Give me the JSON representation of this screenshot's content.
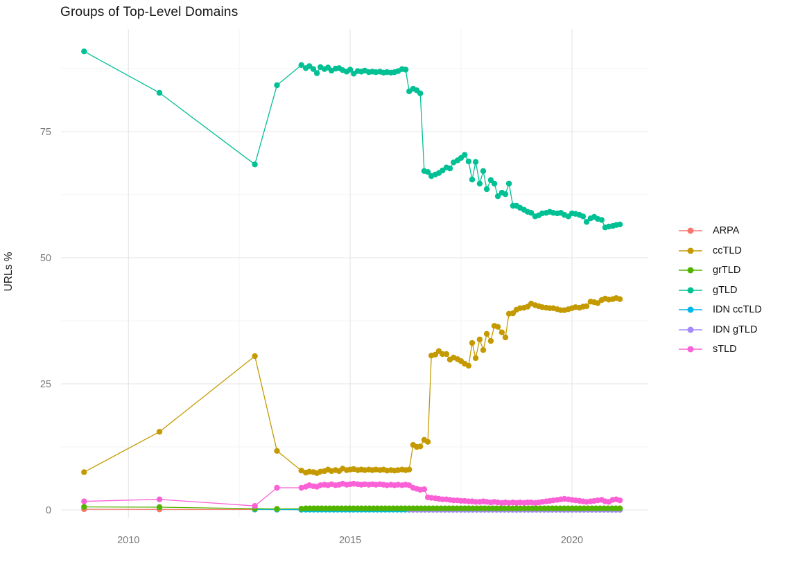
{
  "title": "Groups of Top-Level Domains",
  "y_axis_title": "URLs %",
  "chart_data": {
    "type": "line",
    "title": "Groups of Top-Level Domains",
    "xlabel": "",
    "ylabel": "URLs %",
    "grid": "major+minor",
    "legend_position": "right",
    "xlim": [
      2008.48,
      2021.72
    ],
    "ylim": [
      -1.65,
      95.33
    ],
    "x_ticks": [
      2010,
      2015,
      2020
    ],
    "x_tick_labels": [
      "2010",
      "2015",
      "2020"
    ],
    "x_minor": [
      2012.5,
      2017.5
    ],
    "y_ticks": [
      0,
      25,
      50,
      75
    ],
    "y_tick_labels": [
      "0",
      "25",
      "50",
      "75"
    ],
    "y_minor": [
      12.5,
      37.5,
      62.5,
      87.5
    ],
    "legend_order": [
      "ARPA",
      "ccTLD",
      "grTLD",
      "gTLD",
      "IDN ccTLD",
      "IDN gTLD",
      "sTLD"
    ],
    "series": [
      {
        "name": "ARPA",
        "color": "#F8766D",
        "points": [
          [
            2009,
            0.15
          ],
          [
            2010.7,
            0.1
          ],
          [
            2012.85,
            0.08
          ],
          [
            2013.35,
            0.08
          ],
          [
            2013.9,
            0.05
          ]
        ]
      },
      {
        "name": "IDN ccTLD",
        "color": "#00B6EB",
        "points": [
          [
            2012.85,
            0.1
          ],
          [
            2013.35,
            0.07
          ],
          [
            2013.9,
            0.06
          ]
        ],
        "dense": {
          "x0": 2014,
          "x1": 2021.08,
          "n": 80,
          "y_const": 0.06
        }
      },
      {
        "name": "IDN gTLD",
        "color": "#A58AFF",
        "points": [],
        "dense": {
          "x0": 2016.33,
          "x1": 2021.08,
          "n": 54,
          "y_const": 0.03
        }
      },
      {
        "name": "grTLD",
        "color": "#53B400",
        "points": [
          [
            2009,
            0.6
          ],
          [
            2010.7,
            0.55
          ],
          [
            2012.85,
            0.25
          ],
          [
            2013.35,
            0.2
          ],
          [
            2013.9,
            0.25
          ]
        ],
        "dense": {
          "x0": 2014,
          "x1": 2021.08,
          "n": 80,
          "y_const": 0.32
        }
      },
      {
        "name": "ccTLD",
        "color": "#C49A00",
        "points": [
          [
            2009,
            7.5
          ],
          [
            2010.7,
            15.5
          ],
          [
            2012.85,
            30.5
          ],
          [
            2013.35,
            11.7
          ],
          [
            2013.9,
            7.8
          ],
          [
            2014,
            7.4
          ],
          [
            2014.08,
            7.6
          ],
          [
            2014.17,
            7.5
          ],
          [
            2014.25,
            7.3
          ],
          [
            2014.33,
            7.6
          ],
          [
            2014.42,
            7.7
          ],
          [
            2014.5,
            8
          ],
          [
            2014.58,
            7.7
          ],
          [
            2014.67,
            7.9
          ],
          [
            2014.75,
            7.7
          ],
          [
            2014.83,
            8.2
          ],
          [
            2014.92,
            7.9
          ],
          [
            2015,
            8
          ],
          [
            2015.08,
            8.1
          ],
          [
            2015.17,
            7.9
          ],
          [
            2015.25,
            8
          ],
          [
            2015.33,
            7.9
          ],
          [
            2015.42,
            8
          ],
          [
            2015.5,
            7.9
          ],
          [
            2015.58,
            8
          ],
          [
            2015.67,
            7.9
          ],
          [
            2015.75,
            8
          ],
          [
            2015.83,
            7.8
          ],
          [
            2015.92,
            7.9
          ],
          [
            2016,
            7.8
          ],
          [
            2016.08,
            7.9
          ],
          [
            2016.17,
            8
          ],
          [
            2016.25,
            7.9
          ],
          [
            2016.33,
            8
          ],
          [
            2016.42,
            12.9
          ],
          [
            2016.5,
            12.5
          ],
          [
            2016.58,
            12.6
          ],
          [
            2016.67,
            13.9
          ],
          [
            2016.75,
            13.5
          ],
          [
            2016.83,
            30.6
          ],
          [
            2016.92,
            30.8
          ],
          [
            2017,
            31.5
          ],
          [
            2017.08,
            30.9
          ],
          [
            2017.17,
            30.9
          ],
          [
            2017.25,
            29.8
          ],
          [
            2017.33,
            30.2
          ],
          [
            2017.42,
            29.9
          ],
          [
            2017.5,
            29.5
          ],
          [
            2017.58,
            29
          ],
          [
            2017.67,
            28.6
          ],
          [
            2017.75,
            33.1
          ],
          [
            2017.83,
            30.1
          ],
          [
            2017.92,
            33.8
          ],
          [
            2018,
            31.7
          ],
          [
            2018.08,
            34.9
          ],
          [
            2018.17,
            33.5
          ],
          [
            2018.25,
            36.5
          ],
          [
            2018.33,
            36.3
          ],
          [
            2018.42,
            35.2
          ],
          [
            2018.5,
            34.2
          ],
          [
            2018.58,
            38.9
          ],
          [
            2018.67,
            39
          ],
          [
            2018.75,
            39.7
          ],
          [
            2018.83,
            40
          ],
          [
            2018.92,
            40.1
          ],
          [
            2019,
            40.3
          ],
          [
            2019.08,
            40.9
          ],
          [
            2019.17,
            40.6
          ],
          [
            2019.25,
            40.4
          ],
          [
            2019.33,
            40.2
          ],
          [
            2019.42,
            40.1
          ],
          [
            2019.5,
            40
          ],
          [
            2019.58,
            40
          ],
          [
            2019.67,
            39.8
          ],
          [
            2019.75,
            39.6
          ],
          [
            2019.83,
            39.6
          ],
          [
            2019.92,
            39.8
          ],
          [
            2020,
            40
          ],
          [
            2020.08,
            40.2
          ],
          [
            2020.17,
            40.1
          ],
          [
            2020.25,
            40.3
          ],
          [
            2020.33,
            40.4
          ],
          [
            2020.42,
            41.3
          ],
          [
            2020.5,
            41.2
          ],
          [
            2020.58,
            41
          ],
          [
            2020.67,
            41.6
          ],
          [
            2020.75,
            41.9
          ],
          [
            2020.83,
            41.7
          ],
          [
            2020.92,
            41.8
          ],
          [
            2021,
            42
          ],
          [
            2021.08,
            41.8
          ]
        ]
      },
      {
        "name": "gTLD",
        "color": "#00C094",
        "points": [
          [
            2009,
            90.9
          ],
          [
            2010.7,
            82.7
          ],
          [
            2012.85,
            68.5
          ],
          [
            2013.35,
            84.2
          ],
          [
            2013.9,
            88.2
          ],
          [
            2014,
            87.6
          ],
          [
            2014.08,
            88
          ],
          [
            2014.17,
            87.4
          ],
          [
            2014.25,
            86.6
          ],
          [
            2014.33,
            87.8
          ],
          [
            2014.42,
            87.4
          ],
          [
            2014.5,
            87.7
          ],
          [
            2014.58,
            87.1
          ],
          [
            2014.67,
            87.5
          ],
          [
            2014.75,
            87.6
          ],
          [
            2014.83,
            87.2
          ],
          [
            2014.92,
            86.9
          ],
          [
            2015,
            87.3
          ],
          [
            2015.08,
            86.5
          ],
          [
            2015.17,
            87
          ],
          [
            2015.25,
            86.9
          ],
          [
            2015.33,
            87.1
          ],
          [
            2015.42,
            86.8
          ],
          [
            2015.5,
            86.9
          ],
          [
            2015.58,
            86.8
          ],
          [
            2015.67,
            86.9
          ],
          [
            2015.75,
            86.7
          ],
          [
            2015.83,
            86.8
          ],
          [
            2015.92,
            86.7
          ],
          [
            2016,
            86.8
          ],
          [
            2016.08,
            87
          ],
          [
            2016.17,
            87.4
          ],
          [
            2016.25,
            87.3
          ],
          [
            2016.33,
            83
          ],
          [
            2016.42,
            83.5
          ],
          [
            2016.5,
            83.2
          ],
          [
            2016.58,
            82.6
          ],
          [
            2016.67,
            67.2
          ],
          [
            2016.75,
            67
          ],
          [
            2016.83,
            66.2
          ],
          [
            2016.92,
            66.5
          ],
          [
            2017,
            66.8
          ],
          [
            2017.08,
            67.3
          ],
          [
            2017.17,
            67.9
          ],
          [
            2017.25,
            67.7
          ],
          [
            2017.33,
            68.9
          ],
          [
            2017.42,
            69.3
          ],
          [
            2017.5,
            69.8
          ],
          [
            2017.58,
            70.4
          ],
          [
            2017.67,
            69.1
          ],
          [
            2017.75,
            65.5
          ],
          [
            2017.83,
            69
          ],
          [
            2017.92,
            64.7
          ],
          [
            2018,
            67.2
          ],
          [
            2018.08,
            63.6
          ],
          [
            2018.17,
            65.4
          ],
          [
            2018.25,
            64.7
          ],
          [
            2018.33,
            62.2
          ],
          [
            2018.42,
            62.9
          ],
          [
            2018.5,
            62.6
          ],
          [
            2018.58,
            64.7
          ],
          [
            2018.67,
            60.3
          ],
          [
            2018.75,
            60.3
          ],
          [
            2018.83,
            59.9
          ],
          [
            2018.92,
            59.5
          ],
          [
            2019,
            59.1
          ],
          [
            2019.08,
            58.9
          ],
          [
            2019.17,
            58.2
          ],
          [
            2019.25,
            58.4
          ],
          [
            2019.33,
            58.8
          ],
          [
            2019.42,
            58.9
          ],
          [
            2019.5,
            59.1
          ],
          [
            2019.58,
            58.9
          ],
          [
            2019.67,
            58.8
          ],
          [
            2019.75,
            58.9
          ],
          [
            2019.83,
            58.5
          ],
          [
            2019.92,
            58.2
          ],
          [
            2020,
            58.8
          ],
          [
            2020.08,
            58.7
          ],
          [
            2020.17,
            58.5
          ],
          [
            2020.25,
            58.2
          ],
          [
            2020.33,
            57.1
          ],
          [
            2020.42,
            57.8
          ],
          [
            2020.5,
            58.1
          ],
          [
            2020.58,
            57.7
          ],
          [
            2020.67,
            57.5
          ],
          [
            2020.75,
            56
          ],
          [
            2020.83,
            56.2
          ],
          [
            2020.92,
            56.3
          ],
          [
            2021,
            56.5
          ],
          [
            2021.08,
            56.6
          ]
        ]
      },
      {
        "name": "sTLD",
        "color": "#FB61D7",
        "points": [
          [
            2009,
            1.7
          ],
          [
            2010.7,
            2.1
          ],
          [
            2012.85,
            0.8
          ],
          [
            2013.35,
            4.4
          ],
          [
            2013.9,
            4.4
          ],
          [
            2014,
            4.6
          ],
          [
            2014.08,
            4.9
          ],
          [
            2014.17,
            4.7
          ],
          [
            2014.25,
            4.6
          ],
          [
            2014.33,
            4.9
          ],
          [
            2014.42,
            5
          ],
          [
            2014.5,
            4.9
          ],
          [
            2014.58,
            5.1
          ],
          [
            2014.67,
            4.9
          ],
          [
            2014.75,
            5
          ],
          [
            2014.83,
            5.2
          ],
          [
            2014.92,
            5
          ],
          [
            2015,
            5.1
          ],
          [
            2015.08,
            5.2
          ],
          [
            2015.17,
            5.1
          ],
          [
            2015.25,
            5
          ],
          [
            2015.33,
            5.1
          ],
          [
            2015.42,
            5
          ],
          [
            2015.5,
            5.1
          ],
          [
            2015.58,
            5
          ],
          [
            2015.67,
            5.1
          ],
          [
            2015.75,
            5
          ],
          [
            2015.83,
            4.9
          ],
          [
            2015.92,
            5
          ],
          [
            2016,
            4.9
          ],
          [
            2016.08,
            5
          ],
          [
            2016.17,
            4.9
          ],
          [
            2016.25,
            5
          ],
          [
            2016.33,
            4.9
          ],
          [
            2016.42,
            4.4
          ],
          [
            2016.5,
            4.2
          ],
          [
            2016.58,
            4
          ],
          [
            2016.67,
            4.1
          ],
          [
            2016.75,
            2.5
          ],
          [
            2016.83,
            2.4
          ],
          [
            2016.92,
            2.3
          ],
          [
            2017,
            2.2
          ],
          [
            2017.08,
            2.1
          ],
          [
            2017.17,
            2.1
          ],
          [
            2017.25,
            2
          ],
          [
            2017.33,
            1.9
          ],
          [
            2017.42,
            1.9
          ],
          [
            2017.5,
            1.8
          ],
          [
            2017.58,
            1.8
          ],
          [
            2017.67,
            1.7
          ],
          [
            2017.75,
            1.7
          ],
          [
            2017.83,
            1.6
          ],
          [
            2017.92,
            1.6
          ],
          [
            2018,
            1.7
          ],
          [
            2018.08,
            1.6
          ],
          [
            2018.17,
            1.5
          ],
          [
            2018.25,
            1.6
          ],
          [
            2018.33,
            1.5
          ],
          [
            2018.42,
            1.4
          ],
          [
            2018.5,
            1.5
          ],
          [
            2018.58,
            1.4
          ],
          [
            2018.67,
            1.5
          ],
          [
            2018.75,
            1.4
          ],
          [
            2018.83,
            1.5
          ],
          [
            2018.92,
            1.4
          ],
          [
            2019,
            1.5
          ],
          [
            2019.08,
            1.5
          ],
          [
            2019.17,
            1.4
          ],
          [
            2019.25,
            1.5
          ],
          [
            2019.33,
            1.6
          ],
          [
            2019.42,
            1.7
          ],
          [
            2019.5,
            1.8
          ],
          [
            2019.58,
            1.9
          ],
          [
            2019.67,
            2
          ],
          [
            2019.75,
            2.1
          ],
          [
            2019.83,
            2.2
          ],
          [
            2019.92,
            2.1
          ],
          [
            2020,
            2
          ],
          [
            2020.08,
            1.9
          ],
          [
            2020.17,
            1.8
          ],
          [
            2020.25,
            1.7
          ],
          [
            2020.33,
            1.6
          ],
          [
            2020.42,
            1.7
          ],
          [
            2020.5,
            1.8
          ],
          [
            2020.58,
            1.9
          ],
          [
            2020.67,
            2
          ],
          [
            2020.75,
            1.7
          ],
          [
            2020.83,
            1.6
          ],
          [
            2020.92,
            2
          ],
          [
            2021,
            2.1
          ],
          [
            2021.08,
            1.9
          ]
        ]
      }
    ]
  }
}
